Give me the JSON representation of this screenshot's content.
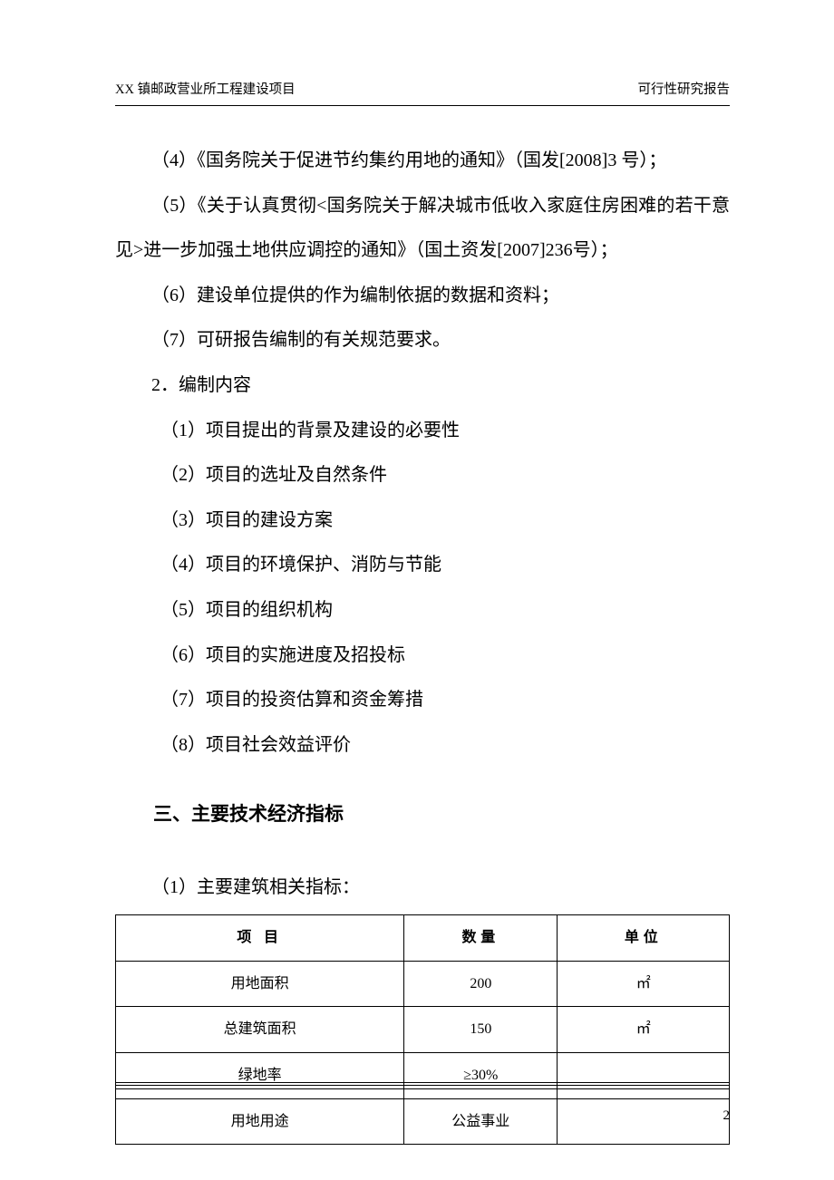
{
  "header": {
    "left": "XX 镇邮政营业所工程建设项目",
    "right": "可行性研究报告"
  },
  "paragraphs": {
    "p4": "（4）《国务院关于促进节约集约用地的通知》（国发[2008]3 号）；",
    "p5": "（5）《关于认真贯彻<国务院关于解决城市低收入家庭住房困难的若干意见>进一步加强土地供应调控的通知》（国土资发[2007]236号）；",
    "p6": "（6）建设单位提供的作为编制依据的数据和资料；",
    "p7": "（7）可研报告编制的有关规范要求。",
    "s2": "2．编制内容",
    "c1": "（1）项目提出的背景及建设的必要性",
    "c2": "（2）项目的选址及自然条件",
    "c3": "（3）项目的建设方案",
    "c4": "（4）项目的环境保护、消防与节能",
    "c5": "（5）项目的组织机构",
    "c6": "（6）项目的实施进度及招投标",
    "c7": "（7）项目的投资估算和资金筹措",
    "c8": "（8）项目社会效益评价"
  },
  "section_heading": "三、主要技术经济指标",
  "table_intro": "（1）主要建筑相关指标：",
  "table": {
    "headers": {
      "item": "项  目",
      "qty": "数量",
      "unit": "单位"
    },
    "rows": [
      {
        "item": "用地面积",
        "qty": "200",
        "unit": "㎡"
      },
      {
        "item": "总建筑面积",
        "qty": "150",
        "unit": "㎡"
      },
      {
        "item": "绿地率",
        "qty": "≥30%",
        "unit": ""
      },
      {
        "item": "用地用途",
        "qty": "公益事业",
        "unit": ""
      }
    ],
    "col_widths": {
      "item": "47%",
      "qty": "25%",
      "unit": "28%"
    }
  },
  "page_number": "2",
  "colors": {
    "text": "#000000",
    "background": "#ffffff",
    "border": "#000000"
  }
}
